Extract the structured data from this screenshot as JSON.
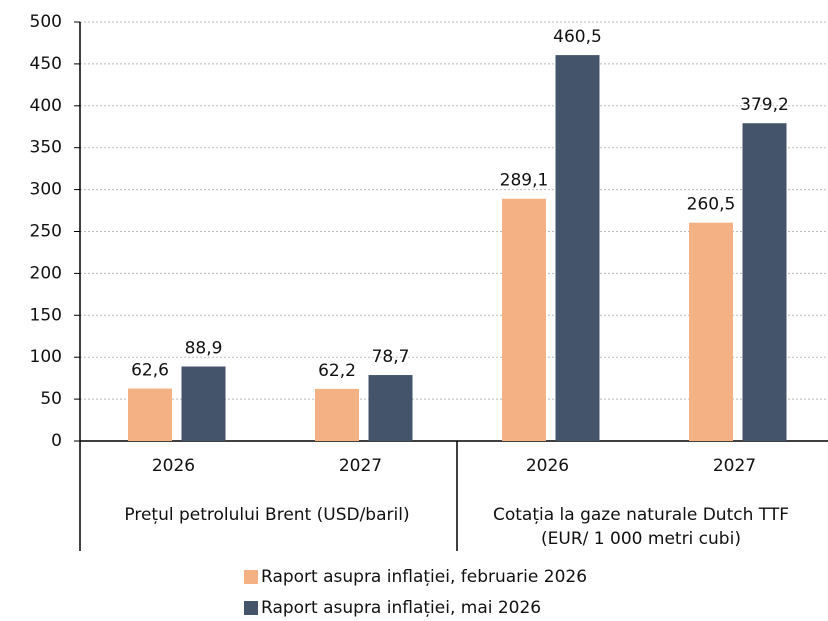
{
  "chart_data": {
    "type": "bar",
    "categories": [
      "2026",
      "2027",
      "2026",
      "2027"
    ],
    "category_groups": [
      "Prețul petrolului Brent (USD/baril)",
      "Cotația la gaze naturale Dutch TTF\n(EUR/ 1 000 metri cubi)"
    ],
    "series": [
      {
        "name": "Raport asupra inflației, februarie 2026",
        "color": "#f4b183",
        "values": [
          62.6,
          62.2,
          289.1,
          260.5
        ],
        "value_labels": [
          "62,6",
          "62,2",
          "289,1",
          "260,5"
        ]
      },
      {
        "name": "Raport asupra inflației, mai 2026",
        "color": "#44546a",
        "values": [
          88.9,
          78.7,
          460.5,
          379.2
        ],
        "value_labels": [
          "88,9",
          "78,7",
          "460,5",
          "379,2"
        ]
      }
    ],
    "ylim": [
      0,
      500
    ],
    "yticks": [
      0,
      50,
      100,
      150,
      200,
      250,
      300,
      350,
      400,
      450,
      500
    ],
    "grid": true
  }
}
